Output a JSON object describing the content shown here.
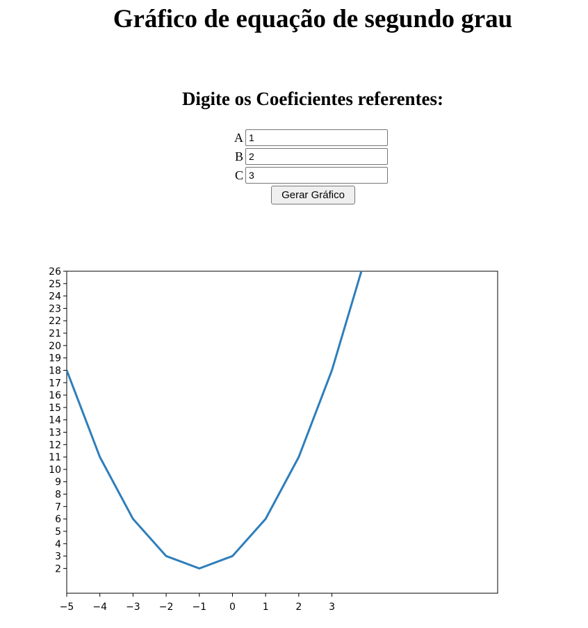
{
  "header": {
    "title": "Gráfico de equação de segundo grau"
  },
  "form": {
    "heading": "Digite os Coeficientes referentes:",
    "fields": [
      {
        "label": "A",
        "value": "1"
      },
      {
        "label": "B",
        "value": "2"
      },
      {
        "label": "C",
        "value": "3"
      }
    ],
    "submit_label": "Gerar Gráfico"
  },
  "chart_data": {
    "type": "line",
    "title": "",
    "xlabel": "",
    "ylabel": "",
    "x": [
      -5,
      -4,
      -3,
      -2,
      -1,
      0,
      1,
      2,
      3,
      4
    ],
    "series": [
      {
        "values": [
          18,
          11,
          6,
          3,
          2,
          3,
          6,
          11,
          18,
          27
        ],
        "color": "#2e7ebb"
      }
    ],
    "xlim": [
      -5,
      8
    ],
    "ylim": [
      0,
      26
    ],
    "xticks": [
      "−5",
      "−4",
      "−3",
      "−2",
      "−1",
      "0",
      "1",
      "2",
      "3"
    ],
    "xtick_values": [
      -5,
      -4,
      -3,
      -2,
      -1,
      0,
      1,
      2,
      3
    ],
    "yticks": [
      2,
      3,
      4,
      5,
      6,
      7,
      8,
      9,
      10,
      11,
      12,
      13,
      14,
      15,
      16,
      17,
      18,
      19,
      20,
      21,
      22,
      23,
      24,
      25,
      26
    ],
    "grid": false,
    "legend": "none"
  }
}
